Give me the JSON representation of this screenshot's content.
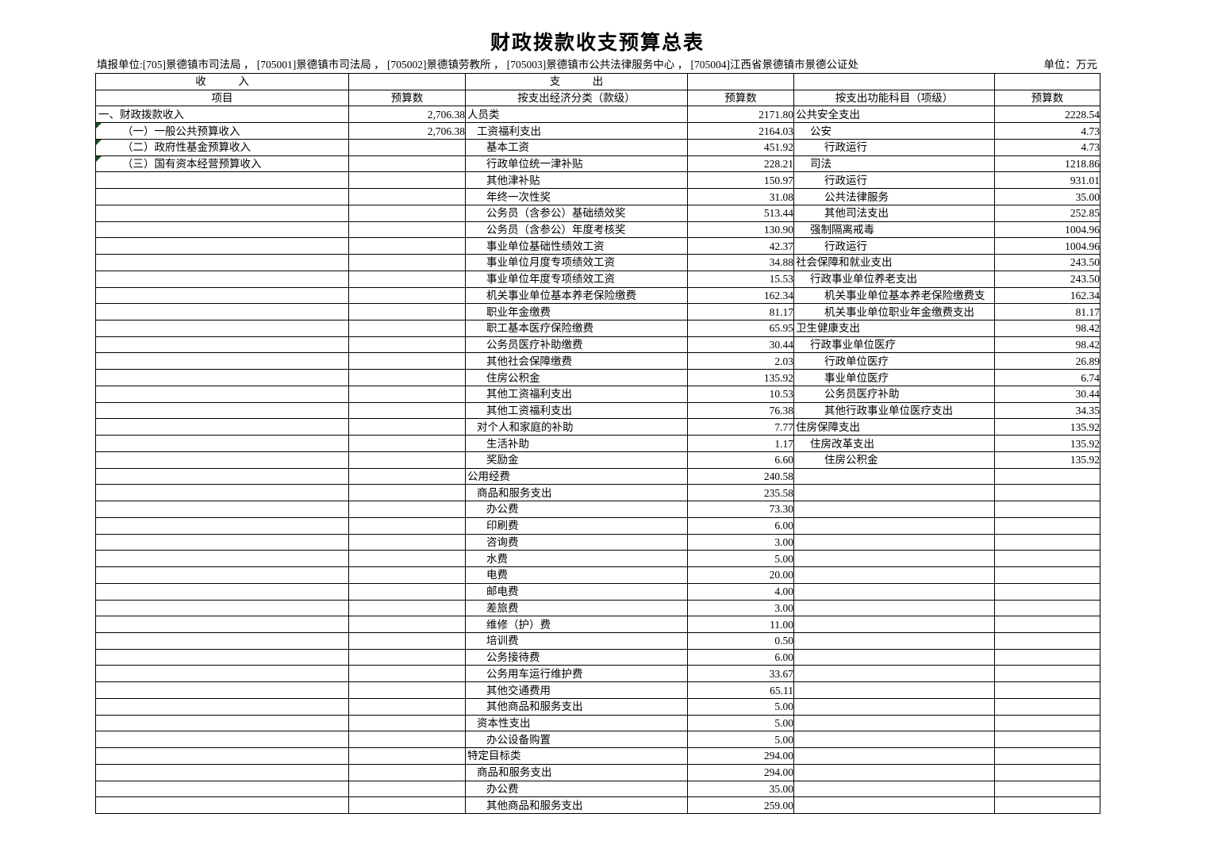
{
  "title": "财政拨款收支预算总表",
  "meta": {
    "reporting_unit": "填报单位:[705]景德镇市司法局 ， [705001]景德镇市司法局 ， [705002]景德镇劳教所 ， [705003]景德镇市公共法律服务中心 ， [705004]江西省景德镇市景德公证处",
    "unit_label": "单位：万元"
  },
  "table": {
    "group_headers": {
      "income": "收　　　入",
      "expenditure": "支　　　出"
    },
    "column_headers": [
      "项目",
      "预算数",
      "按支出经济分类（款级）",
      "预算数",
      "按支出功能科目（项级）",
      "预算数"
    ],
    "row_format": [
      "income_item",
      "income_indent",
      "income_amount",
      "econ_item",
      "econ_indent",
      "econ_amount",
      "func_item",
      "func_indent",
      "func_amount"
    ],
    "comment_marker_rows": [
      1,
      2,
      3
    ],
    "marker_color": "#1e4d28",
    "rows": [
      [
        "一、财政拨款收入",
        0,
        "2,706.38",
        "人员类",
        0,
        "2171.80",
        "公共安全支出",
        0,
        "2228.54"
      ],
      [
        "（一）一般公共预算收入",
        1,
        "2,706.38",
        "工资福利支出",
        1,
        "2164.03",
        "公安",
        1,
        "4.73"
      ],
      [
        "（二）政府性基金预算收入",
        1,
        "",
        "基本工资",
        2,
        "451.92",
        "行政运行",
        2,
        "4.73"
      ],
      [
        "（三）国有资本经营预算收入",
        1,
        "",
        "行政单位统一津补贴",
        2,
        "228.21",
        "司法",
        1,
        "1218.86"
      ],
      [
        "",
        0,
        "",
        "其他津补贴",
        2,
        "150.97",
        "行政运行",
        2,
        "931.01"
      ],
      [
        "",
        0,
        "",
        "年终一次性奖",
        2,
        "31.08",
        "公共法律服务",
        2,
        "35.00"
      ],
      [
        "",
        0,
        "",
        "公务员（含参公）基础绩效奖",
        2,
        "513.44",
        "其他司法支出",
        2,
        "252.85"
      ],
      [
        "",
        0,
        "",
        "公务员（含参公）年度考核奖",
        2,
        "130.90",
        "强制隔离戒毒",
        1,
        "1004.96"
      ],
      [
        "",
        0,
        "",
        "事业单位基础性绩效工资",
        2,
        "42.37",
        "行政运行",
        2,
        "1004.96"
      ],
      [
        "",
        0,
        "",
        "事业单位月度专项绩效工资",
        2,
        "34.88",
        "社会保障和就业支出",
        0,
        "243.50"
      ],
      [
        "",
        0,
        "",
        "事业单位年度专项绩效工资",
        2,
        "15.53",
        "行政事业单位养老支出",
        1,
        "243.50"
      ],
      [
        "",
        0,
        "",
        "机关事业单位基本养老保险缴费",
        2,
        "162.34",
        "机关事业单位基本养老保险缴费支",
        2,
        "162.34"
      ],
      [
        "",
        0,
        "",
        "职业年金缴费",
        2,
        "81.17",
        "机关事业单位职业年金缴费支出",
        2,
        "81.17"
      ],
      [
        "",
        0,
        "",
        "职工基本医疗保险缴费",
        2,
        "65.95",
        "卫生健康支出",
        0,
        "98.42"
      ],
      [
        "",
        0,
        "",
        "公务员医疗补助缴费",
        2,
        "30.44",
        "行政事业单位医疗",
        1,
        "98.42"
      ],
      [
        "",
        0,
        "",
        "其他社会保障缴费",
        2,
        "2.03",
        "行政单位医疗",
        2,
        "26.89"
      ],
      [
        "",
        0,
        "",
        "住房公积金",
        2,
        "135.92",
        "事业单位医疗",
        2,
        "6.74"
      ],
      [
        "",
        0,
        "",
        "其他工资福利支出",
        2,
        "10.53",
        "公务员医疗补助",
        2,
        "30.44"
      ],
      [
        "",
        0,
        "",
        "其他工资福利支出",
        2,
        "76.38",
        "其他行政事业单位医疗支出",
        2,
        "34.35"
      ],
      [
        "",
        0,
        "",
        "对个人和家庭的补助",
        1,
        "7.77",
        "住房保障支出",
        0,
        "135.92"
      ],
      [
        "",
        0,
        "",
        "生活补助",
        2,
        "1.17",
        "住房改革支出",
        1,
        "135.92"
      ],
      [
        "",
        0,
        "",
        "奖励金",
        2,
        "6.60",
        "住房公积金",
        2,
        "135.92"
      ],
      [
        "",
        0,
        "",
        "公用经费",
        0,
        "240.58",
        "",
        0,
        ""
      ],
      [
        "",
        0,
        "",
        "商品和服务支出",
        1,
        "235.58",
        "",
        0,
        ""
      ],
      [
        "",
        0,
        "",
        "办公费",
        2,
        "73.30",
        "",
        0,
        ""
      ],
      [
        "",
        0,
        "",
        "印刷费",
        2,
        "6.00",
        "",
        0,
        ""
      ],
      [
        "",
        0,
        "",
        "咨询费",
        2,
        "3.00",
        "",
        0,
        ""
      ],
      [
        "",
        0,
        "",
        "水费",
        2,
        "5.00",
        "",
        0,
        ""
      ],
      [
        "",
        0,
        "",
        "电费",
        2,
        "20.00",
        "",
        0,
        ""
      ],
      [
        "",
        0,
        "",
        "邮电费",
        2,
        "4.00",
        "",
        0,
        ""
      ],
      [
        "",
        0,
        "",
        "差旅费",
        2,
        "3.00",
        "",
        0,
        ""
      ],
      [
        "",
        0,
        "",
        "维修（护）费",
        2,
        "11.00",
        "",
        0,
        ""
      ],
      [
        "",
        0,
        "",
        "培训费",
        2,
        "0.50",
        "",
        0,
        ""
      ],
      [
        "",
        0,
        "",
        "公务接待费",
        2,
        "6.00",
        "",
        0,
        ""
      ],
      [
        "",
        0,
        "",
        "公务用车运行维护费",
        2,
        "33.67",
        "",
        0,
        ""
      ],
      [
        "",
        0,
        "",
        "其他交通费用",
        2,
        "65.11",
        "",
        0,
        ""
      ],
      [
        "",
        0,
        "",
        "其他商品和服务支出",
        2,
        "5.00",
        "",
        0,
        ""
      ],
      [
        "",
        0,
        "",
        "资本性支出",
        1,
        "5.00",
        "",
        0,
        ""
      ],
      [
        "",
        0,
        "",
        "办公设备购置",
        2,
        "5.00",
        "",
        0,
        ""
      ],
      [
        "",
        0,
        "",
        "特定目标类",
        0,
        "294.00",
        "",
        0,
        ""
      ],
      [
        "",
        0,
        "",
        "商品和服务支出",
        1,
        "294.00",
        "",
        0,
        ""
      ],
      [
        "",
        0,
        "",
        "办公费",
        2,
        "35.00",
        "",
        0,
        ""
      ],
      [
        "",
        0,
        "",
        "其他商品和服务支出",
        2,
        "259.00",
        "",
        0,
        ""
      ]
    ]
  }
}
